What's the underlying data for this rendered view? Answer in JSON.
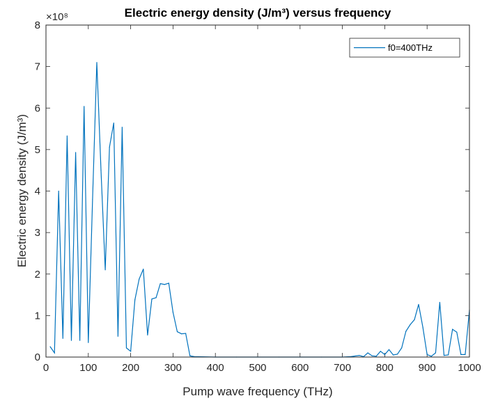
{
  "chart_data": {
    "type": "line",
    "title": "Electric energy density (J/m³) versus frequency",
    "xlabel": "Pump wave frequency (THz)",
    "ylabel": "Electric energy density (J/m³)",
    "y_exponent_label": "×10⁸",
    "xlim": [
      0,
      1000
    ],
    "ylim": [
      0,
      8
    ],
    "y_scale_factor": 100000000,
    "xticks": [
      0,
      100,
      200,
      300,
      400,
      500,
      600,
      700,
      800,
      900,
      1000
    ],
    "yticks": [
      0,
      1,
      2,
      3,
      4,
      5,
      6,
      7,
      8
    ],
    "grid": false,
    "legend_position": "top-right",
    "colors": {
      "series": "#0072BD",
      "axis": "#262626"
    },
    "series": [
      {
        "name": "f0=400THz",
        "x": [
          10,
          20,
          30,
          40,
          50,
          60,
          70,
          80,
          90,
          100,
          110,
          120,
          130,
          140,
          150,
          160,
          170,
          180,
          190,
          200,
          210,
          220,
          230,
          240,
          250,
          260,
          270,
          280,
          290,
          300,
          310,
          320,
          330,
          340,
          350,
          400,
          450,
          500,
          550,
          600,
          650,
          700,
          720,
          740,
          750,
          760,
          770,
          780,
          790,
          800,
          810,
          820,
          830,
          840,
          850,
          860,
          870,
          880,
          890,
          900,
          910,
          920,
          930,
          940,
          950,
          960,
          970,
          980,
          990,
          1000
        ],
        "y": [
          0.25,
          0.1,
          4.0,
          0.45,
          5.33,
          0.4,
          4.93,
          0.4,
          6.04,
          0.35,
          3.8,
          7.1,
          4.5,
          2.1,
          5.06,
          5.64,
          0.5,
          5.54,
          0.22,
          0.14,
          1.38,
          1.88,
          2.12,
          0.53,
          1.4,
          1.43,
          1.77,
          1.75,
          1.78,
          1.08,
          0.61,
          0.56,
          0.57,
          0.03,
          0.01,
          0.0,
          0.0,
          0.0,
          0.0,
          0.0,
          0.0,
          0.0,
          0.01,
          0.04,
          0.01,
          0.1,
          0.03,
          0.02,
          0.14,
          0.06,
          0.18,
          0.05,
          0.07,
          0.22,
          0.62,
          0.78,
          0.9,
          1.27,
          0.72,
          0.06,
          0.02,
          0.1,
          1.32,
          0.04,
          0.05,
          0.67,
          0.6,
          0.06,
          0.06,
          1.13
        ]
      }
    ]
  }
}
